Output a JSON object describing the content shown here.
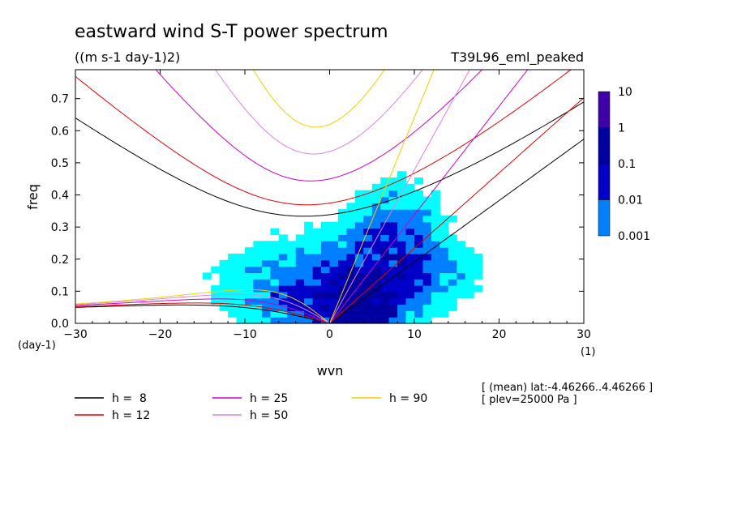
{
  "chart_data": {
    "type": "heatmap",
    "title": "eastward wind S-T power spectrum",
    "subtitle": "((m s-1 day-1)2)",
    "run_label": "T39L96_eml_peaked",
    "xlabel": "wvn",
    "ylabel": "freq",
    "x_unit": "(1)",
    "y_unit": "(day-1)",
    "xlim": [
      -30,
      30
    ],
    "ylim": [
      0,
      0.79
    ],
    "x_ticks": [
      "-30",
      "-20",
      "-10",
      "0",
      "10",
      "20",
      "30"
    ],
    "y_ticks": [
      "0.0",
      "0.1",
      "0.2",
      "0.3",
      "0.4",
      "0.5",
      "0.6",
      "0.7"
    ],
    "colorbar": {
      "labels": [
        "10",
        "1",
        "0.1",
        "0.01",
        "0.001"
      ],
      "levels": [
        0.001,
        0.01,
        0.1,
        1,
        10
      ],
      "colors": [
        "#00ffff",
        "#0080ff",
        "#0000c8",
        "#0000a0",
        "#4000a8"
      ]
    },
    "footnote_lines": [
      "[ (mean) lat:-4.46266..4.46266 ]",
      "[ plev=25000 Pa ]"
    ],
    "legend": [
      {
        "label": "h =  8",
        "color": "#000000"
      },
      {
        "label": "h = 12",
        "color": "#e00000"
      },
      {
        "label": "h = 25",
        "color": "#cc00cc"
      },
      {
        "label": "h = 50",
        "color": "#e080e0"
      },
      {
        "label": "h = 90",
        "color": "#f0d000"
      }
    ],
    "dispersion_curves": {
      "equivalent_depths": [
        8,
        12,
        25,
        50,
        90
      ],
      "colors": [
        "#000000",
        "#e00000",
        "#cc00cc",
        "#e080e0",
        "#f0d000"
      ]
    },
    "spectral_blobs": [
      {
        "x": 3,
        "y": 0.06,
        "sx": 6,
        "sy": 0.09,
        "amp": 0.9
      },
      {
        "x": 6,
        "y": 0.2,
        "sx": 6,
        "sy": 0.12,
        "amp": 0.5
      },
      {
        "x": -4,
        "y": 0.12,
        "sx": 9,
        "sy": 0.14,
        "amp": 0.45
      },
      {
        "x": 8,
        "y": 0.33,
        "sx": 5,
        "sy": 0.12,
        "amp": 0.35
      },
      {
        "x": 12,
        "y": 0.15,
        "sx": 6,
        "sy": 0.1,
        "amp": 0.3
      },
      {
        "x": 4,
        "y": 0.03,
        "sx": 3,
        "sy": 0.04,
        "amp": 0.9
      }
    ]
  }
}
